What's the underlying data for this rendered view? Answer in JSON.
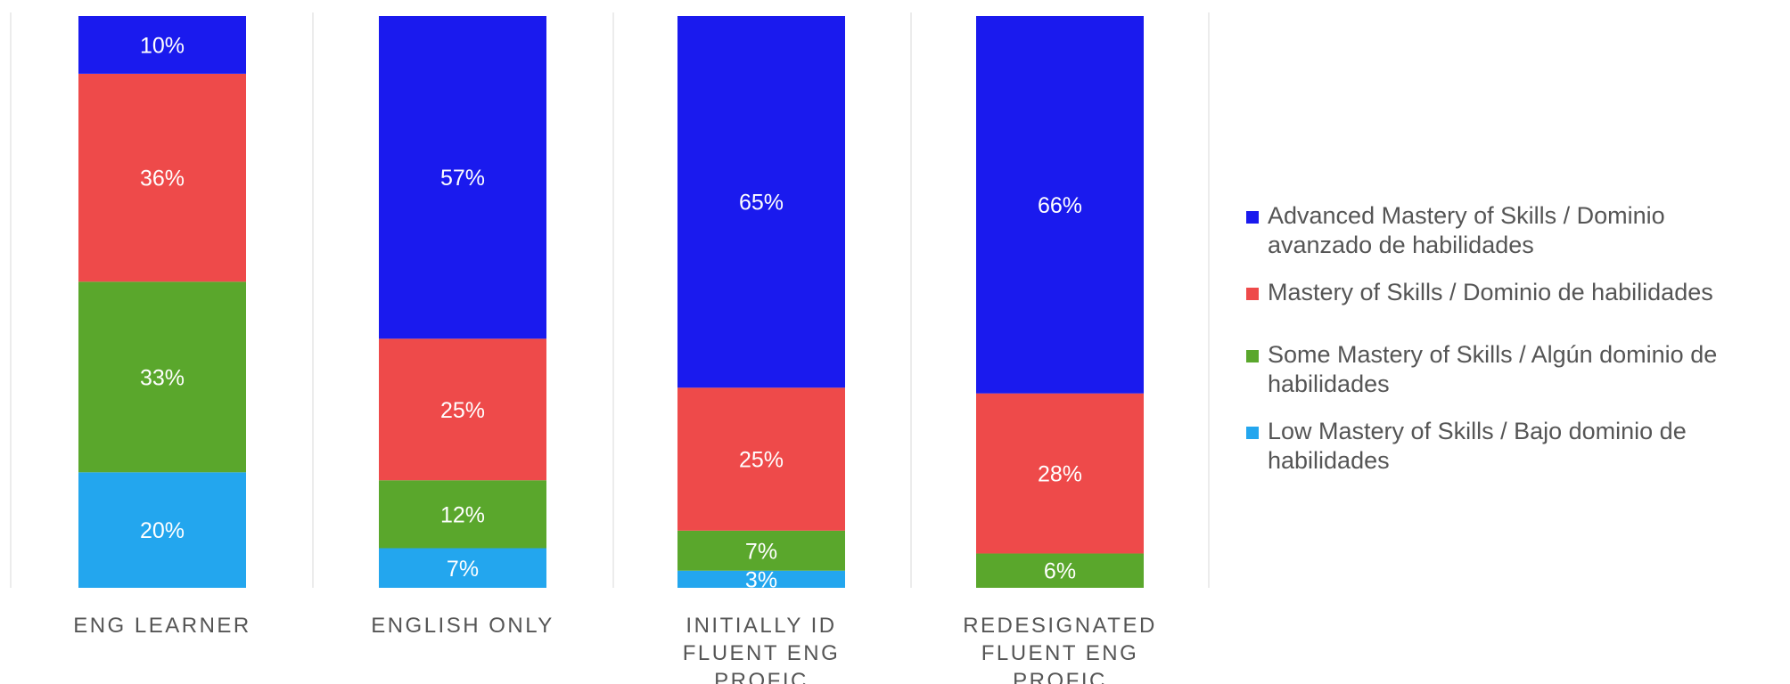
{
  "chart_data": {
    "type": "bar",
    "stacked": true,
    "categories": [
      [
        "ENG LEARNER"
      ],
      [
        "ENGLISH ONLY"
      ],
      [
        "INITIALLY ID",
        "FLUENT ENG",
        "PROFIC"
      ],
      [
        "REDESIGNATED",
        "FLUENT ENG",
        "PROFIC"
      ]
    ],
    "series": [
      {
        "name": "Low Mastery of Skills / Bajo dominio de habilidades",
        "color": "#23a6ee",
        "values": [
          20,
          7,
          3,
          0
        ],
        "labels": [
          "20%",
          "7%",
          "3%",
          "0%"
        ]
      },
      {
        "name": "Some Mastery of Skills / Algún dominio de habilidades",
        "color": "#5aa72c",
        "values": [
          33,
          12,
          7,
          6
        ],
        "labels": [
          "33%",
          "12%",
          "7%",
          "6%"
        ]
      },
      {
        "name": "Mastery of Skills / Dominio de habilidades",
        "color": "#ee4a4a",
        "values": [
          36,
          25,
          25,
          28
        ],
        "labels": [
          "36%",
          "25%",
          "25%",
          "28%"
        ]
      },
      {
        "name": "Advanced Mastery of Skills / Dominio avanzado de habilidades",
        "color": "#1a1aee",
        "values": [
          10,
          57,
          65,
          66
        ],
        "labels": [
          "10%",
          "57%",
          "65%",
          "66%"
        ]
      }
    ],
    "ylim": [
      0,
      100
    ],
    "grid": "vertical separators",
    "legend_position": "right"
  },
  "legend": [
    {
      "color": "#1a1aee",
      "lines": [
        "Advanced Mastery of Skills / Dominio",
        "avanzado de habilidades"
      ]
    },
    {
      "color": "#ee4a4a",
      "lines": [
        "Mastery of Skills / Dominio de habilidades"
      ]
    },
    {
      "color": "#5aa72c",
      "lines": [
        "Some Mastery of Skills / Algún dominio de",
        "habilidades"
      ]
    },
    {
      "color": "#23a6ee",
      "lines": [
        "Low Mastery of Skills / Bajo dominio de",
        "habilidades"
      ]
    }
  ]
}
